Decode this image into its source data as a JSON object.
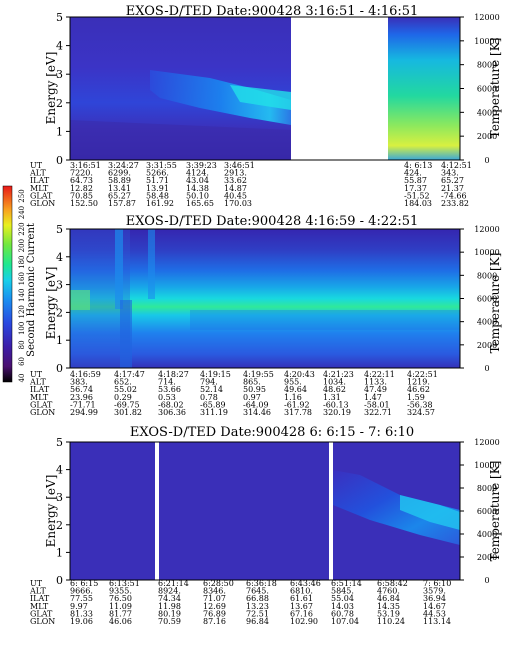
{
  "chart_data": {
    "type": "heatmap",
    "colorbar": {
      "label": "Second Harmonic Current",
      "ticks": [
        "40",
        "60",
        "80",
        "100",
        "120",
        "140",
        "160",
        "180",
        "200",
        "220",
        "240",
        "250"
      ]
    },
    "panels": [
      {
        "title": "EXOS-D/TED   Date:900428   3:16:51 - 4:16:51",
        "ylabel": "Energy [eV]",
        "y2label": "Temperature [K]",
        "ylim": [
          0,
          5
        ],
        "y2lim": [
          0,
          12000
        ],
        "yticks": [
          "0",
          "1",
          "2",
          "3",
          "4",
          "5"
        ],
        "y2ticks": [
          "0",
          "2000",
          "4000",
          "6000",
          "8000",
          "10000",
          "12000"
        ],
        "table": {
          "row_labels": [
            "UT",
            "ALT",
            "ILAT",
            "MLT",
            "GLAT",
            "GLON"
          ],
          "columns": [
            [
              "3:16:51",
              "7220.",
              "64.73",
              "12.82",
              "70.85",
              "152.50"
            ],
            [
              "3:24:27",
              "6299.",
              "58.89",
              "13.41",
              "65.27",
              "157.87"
            ],
            [
              "3:31:55",
              "5266.",
              "51.71",
              "13.91",
              "58.48",
              "161.92"
            ],
            [
              "3:39:23",
              "4124.",
              "43.04",
              "14.38",
              "50.10",
              "165.65"
            ],
            [
              "3:46:51",
              "2913.",
              "33.62",
              "14.87",
              "40.45",
              "170.03"
            ],
            [
              "4: 6:13",
              "424.",
              "55.87",
              "17.37",
              "-51.52",
              "184.03"
            ],
            [
              "4:12:51",
              "343.",
              "65.27",
              "21.37",
              "-74.66",
              "233.82"
            ]
          ]
        }
      },
      {
        "title": "EXOS-D/TED   Date:900428   4:16:59 - 4:22:51",
        "ylabel": "Energy [eV]",
        "y2label": "Temperature [K]",
        "ylim": [
          0,
          5
        ],
        "y2lim": [
          0,
          12000
        ],
        "yticks": [
          "0",
          "1",
          "2",
          "3",
          "4",
          "5"
        ],
        "y2ticks": [
          "0",
          "2000",
          "4000",
          "6000",
          "8000",
          "10000",
          "12000"
        ],
        "table": {
          "row_labels": [
            "UT",
            "ALT",
            "ILAT",
            "MLT",
            "GLAT",
            "GLON"
          ],
          "columns": [
            [
              "4:16:59",
              "383.",
              "56.74",
              "23.96",
              "-71.71",
              "294.99"
            ],
            [
              "4:17:47",
              "652.",
              "55.02",
              "0.29",
              "-69.75",
              "301.82"
            ],
            [
              "4:18:27",
              "714.",
              "53.66",
              "0.53",
              "-68.02",
              "306.36"
            ],
            [
              "4:19:15",
              "794.",
              "52.14",
              "0.78",
              "-65.89",
              "311.19"
            ],
            [
              "4:19:55",
              "865.",
              "50.95",
              "0.97",
              "-64.09",
              "314.46"
            ],
            [
              "4:20:43",
              "955.",
              "49.64",
              "1.16",
              "-61.92",
              "317.78"
            ],
            [
              "4:21:23",
              "1034.",
              "48.62",
              "1.31",
              "-60.13",
              "320.19"
            ],
            [
              "4:22:11",
              "1133.",
              "47.49",
              "1.47",
              "-58.01",
              "322.71"
            ],
            [
              "4:22:51",
              "1219.",
              "46.62",
              "1.59",
              "-56.38",
              "324.57"
            ]
          ]
        }
      },
      {
        "title": "EXOS-D/TED   Date:900428   6: 6:15 - 7: 6:10",
        "ylabel": "Energy [eV]",
        "y2label": "Temperature [K]",
        "ylim": [
          0,
          5
        ],
        "y2lim": [
          0,
          12000
        ],
        "yticks": [
          "0",
          "1",
          "2",
          "3",
          "4",
          "5"
        ],
        "y2ticks": [
          "0",
          "2000",
          "4000",
          "6000",
          "8000",
          "10000",
          "12000"
        ],
        "table": {
          "row_labels": [
            "UT",
            "ALT",
            "ILAT",
            "MLT",
            "GLAT",
            "GLON"
          ],
          "columns": [
            [
              "6: 6:15",
              "9666.",
              "77.55",
              "9.97",
              "81.33",
              "19.06"
            ],
            [
              "6:13:51",
              "9355.",
              "76.50",
              "11.09",
              "81.77",
              "46.06"
            ],
            [
              "6:21:14",
              "8924.",
              "74.34",
              "11.98",
              "80.19",
              "70.59"
            ],
            [
              "6:28:50",
              "8346.",
              "71.07",
              "12.69",
              "76.89",
              "87.16"
            ],
            [
              "6:36:18",
              "7645.",
              "66.88",
              "13.23",
              "72.51",
              "96.84"
            ],
            [
              "6:43:46",
              "6810.",
              "61.61",
              "13.67",
              "67.16",
              "102.90"
            ],
            [
              "6:51:14",
              "5845.",
              "55.04",
              "14.03",
              "60.78",
              "107.04"
            ],
            [
              "6:58:42",
              "4760.",
              "46.84",
              "14.35",
              "53.19",
              "110.24"
            ],
            [
              "7: 6:10",
              "3579.",
              "36.94",
              "14.67",
              "44.53",
              "113.14"
            ]
          ]
        }
      }
    ]
  }
}
